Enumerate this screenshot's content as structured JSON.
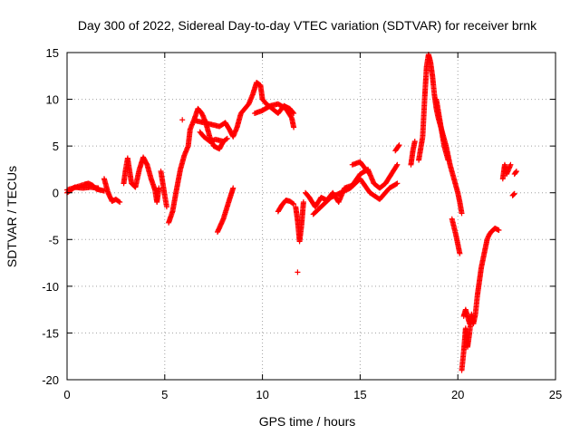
{
  "chart_data": {
    "type": "scatter",
    "title": "Day 300 of 2022, Sidereal Day-to-day VTEC variation (SDTVAR) for receiver brnk",
    "xlabel": "GPS time / hours",
    "ylabel": "SDTVAR / TECUs",
    "xlim": [
      0,
      25
    ],
    "ylim": [
      -20,
      15
    ],
    "xticks": [
      0,
      5,
      10,
      15,
      20,
      25
    ],
    "yticks": [
      -20,
      -15,
      -10,
      -5,
      0,
      5,
      10,
      15
    ],
    "grid": true,
    "marker": "+",
    "color": "#ff0000",
    "series": [
      {
        "name": "brnk",
        "segments": [
          [
            [
              0.0,
              0.3
            ],
            [
              0.3,
              0.5
            ],
            [
              0.6,
              0.7
            ],
            [
              0.9,
              0.9
            ],
            [
              1.1,
              1.0
            ],
            [
              1.3,
              0.8
            ],
            [
              1.5,
              0.4
            ],
            [
              1.7,
              0.3
            ],
            [
              1.9,
              0.2
            ]
          ],
          [
            [
              0.0,
              0.0
            ],
            [
              0.4,
              0.6
            ],
            [
              0.8,
              0.5
            ],
            [
              1.2,
              0.6
            ],
            [
              1.6,
              0.5
            ]
          ],
          [
            [
              1.9,
              1.5
            ],
            [
              2.1,
              0.0
            ],
            [
              2.3,
              -0.9
            ],
            [
              2.5,
              -0.7
            ],
            [
              2.7,
              -1.0
            ]
          ],
          [
            [
              2.9,
              1.0
            ],
            [
              3.0,
              2.5
            ],
            [
              3.1,
              3.7
            ],
            [
              3.3,
              1.0
            ],
            [
              3.5,
              0.6
            ],
            [
              3.7,
              2.5
            ],
            [
              3.9,
              3.8
            ],
            [
              4.1,
              3.0
            ],
            [
              4.3,
              1.5
            ],
            [
              4.5,
              0.3
            ],
            [
              4.6,
              -1.0
            ],
            [
              4.7,
              0.5
            ]
          ],
          [
            [
              4.8,
              2.3
            ],
            [
              5.0,
              -0.3
            ],
            [
              5.1,
              -1.5
            ]
          ],
          [
            [
              5.2,
              -3.2
            ],
            [
              5.4,
              -2.0
            ],
            [
              5.6,
              0.3
            ],
            [
              5.8,
              2.5
            ],
            [
              6.0,
              4.0
            ],
            [
              6.2,
              5.0
            ],
            [
              6.3,
              6.8
            ],
            [
              6.5,
              7.8
            ],
            [
              6.7,
              9.0
            ],
            [
              6.9,
              8.5
            ],
            [
              7.1,
              7.5
            ],
            [
              7.3,
              6.0
            ],
            [
              7.5,
              5.0
            ],
            [
              7.8,
              4.7
            ],
            [
              8.0,
              5.5
            ],
            [
              8.2,
              5.8
            ]
          ],
          [
            [
              6.6,
              7.7
            ],
            [
              7.0,
              7.5
            ],
            [
              7.4,
              7.3
            ],
            [
              7.8,
              7.1
            ],
            [
              8.1,
              7.5
            ],
            [
              8.3,
              6.8
            ],
            [
              8.5,
              6.0
            ],
            [
              8.7,
              7.0
            ],
            [
              8.9,
              8.5
            ],
            [
              9.1,
              9.0
            ],
            [
              9.3,
              9.5
            ],
            [
              9.5,
              10.5
            ],
            [
              9.7,
              11.8
            ],
            [
              9.9,
              11.5
            ],
            [
              10.0,
              10.0
            ],
            [
              10.2,
              9.5
            ],
            [
              10.5,
              9.0
            ],
            [
              10.8,
              8.5
            ],
            [
              11.1,
              9.3
            ],
            [
              11.4,
              9.0
            ],
            [
              11.6,
              8.5
            ]
          ],
          [
            [
              6.8,
              6.5
            ],
            [
              7.0,
              6.0
            ],
            [
              7.3,
              5.5
            ],
            [
              7.6,
              5.7
            ],
            [
              8.0,
              5.5
            ]
          ],
          [
            [
              9.6,
              8.5
            ],
            [
              10.0,
              8.8
            ],
            [
              10.4,
              9.3
            ],
            [
              10.8,
              9.5
            ],
            [
              11.2,
              9.0
            ],
            [
              11.5,
              8.0
            ],
            [
              11.6,
              7.0
            ]
          ],
          [
            [
              7.7,
              -4.2
            ],
            [
              8.0,
              -2.8
            ],
            [
              8.3,
              -0.8
            ],
            [
              8.5,
              0.5
            ]
          ],
          [
            [
              10.8,
              -2.0
            ],
            [
              11.0,
              -1.3
            ],
            [
              11.2,
              -0.8
            ],
            [
              11.4,
              -0.9
            ],
            [
              11.6,
              -1.2
            ]
          ],
          [
            [
              11.7,
              -1.5
            ],
            [
              11.8,
              -3.0
            ],
            [
              11.9,
              -5.2
            ],
            [
              12.0,
              -3.5
            ],
            [
              12.1,
              -1.0
            ]
          ],
          [
            [
              12.2,
              0.0
            ],
            [
              12.4,
              -0.5
            ],
            [
              12.7,
              -1.5
            ],
            [
              13.0,
              -0.5
            ],
            [
              13.3,
              -0.8
            ],
            [
              13.6,
              0.0
            ],
            [
              13.9,
              -1.0
            ],
            [
              14.2,
              0.5
            ],
            [
              14.6,
              0.8
            ],
            [
              15.0,
              2.0
            ],
            [
              15.4,
              2.5
            ],
            [
              15.7,
              1.0
            ],
            [
              16.0,
              0.5
            ],
            [
              16.3,
              1.0
            ],
            [
              16.6,
              2.0
            ],
            [
              16.9,
              3.0
            ]
          ],
          [
            [
              12.6,
              -2.3
            ],
            [
              13.0,
              -1.5
            ],
            [
              13.5,
              -0.5
            ],
            [
              14.0,
              0.0
            ],
            [
              14.5,
              0.5
            ],
            [
              15.0,
              1.5
            ],
            [
              15.5,
              0.0
            ],
            [
              16.0,
              -0.7
            ],
            [
              16.5,
              0.5
            ],
            [
              16.9,
              1.0
            ]
          ],
          [
            [
              14.6,
              3.0
            ],
            [
              15.0,
              3.3
            ],
            [
              15.4,
              2.2
            ]
          ],
          [
            [
              16.8,
              4.5
            ],
            [
              17.0,
              5.1
            ]
          ],
          [
            [
              17.6,
              3.0
            ],
            [
              17.7,
              4.5
            ],
            [
              17.8,
              5.5
            ]
          ],
          [
            [
              18.0,
              3.5
            ],
            [
              18.2,
              6.0
            ],
            [
              18.3,
              10.0
            ],
            [
              18.4,
              13.5
            ],
            [
              18.5,
              14.8
            ],
            [
              18.6,
              14.0
            ],
            [
              18.7,
              12.5
            ],
            [
              18.8,
              10.5
            ],
            [
              18.9,
              9.0
            ],
            [
              19.0,
              8.0
            ],
            [
              19.2,
              6.5
            ],
            [
              19.4,
              5.0
            ],
            [
              19.6,
              3.0
            ],
            [
              19.8,
              1.5
            ],
            [
              20.0,
              0.0
            ],
            [
              20.1,
              -1.0
            ],
            [
              20.2,
              -2.2
            ]
          ],
          [
            [
              18.9,
              10.0
            ],
            [
              19.1,
              7.5
            ],
            [
              19.3,
              5.0
            ],
            [
              19.5,
              3.5
            ]
          ],
          [
            [
              19.7,
              -2.8
            ],
            [
              19.9,
              -4.5
            ],
            [
              20.1,
              -6.5
            ]
          ],
          [
            [
              20.2,
              -19.0
            ],
            [
              20.3,
              -17.0
            ],
            [
              20.4,
              -14.5
            ],
            [
              20.5,
              -16.5
            ],
            [
              20.6,
              -15.0
            ],
            [
              20.7,
              -13.0
            ],
            [
              20.8,
              -14.0
            ],
            [
              20.9,
              -13.0
            ],
            [
              21.0,
              -11.0
            ],
            [
              21.1,
              -9.5
            ],
            [
              21.2,
              -8.0
            ],
            [
              21.3,
              -7.0
            ],
            [
              21.4,
              -6.0
            ],
            [
              21.5,
              -5.0
            ],
            [
              21.6,
              -4.5
            ],
            [
              21.7,
              -4.2
            ],
            [
              21.8,
              -4.0
            ],
            [
              21.9,
              -3.8
            ],
            [
              22.0,
              -3.9
            ],
            [
              22.1,
              -4.0
            ]
          ],
          [
            [
              20.3,
              -13.2
            ],
            [
              20.4,
              -12.5
            ],
            [
              20.6,
              -14.0
            ]
          ],
          [
            [
              22.3,
              1.5
            ],
            [
              22.4,
              3.0
            ],
            [
              22.5,
              2.0
            ],
            [
              22.6,
              2.5
            ],
            [
              22.7,
              3.0
            ]
          ],
          [
            [
              22.8,
              -0.3
            ],
            [
              22.9,
              -0.1
            ]
          ],
          [
            [
              22.9,
              2.0
            ],
            [
              23.0,
              2.3
            ]
          ]
        ],
        "isolated": [
          [
            11.8,
            -8.5
          ],
          [
            5.9,
            7.8
          ]
        ]
      }
    ]
  }
}
